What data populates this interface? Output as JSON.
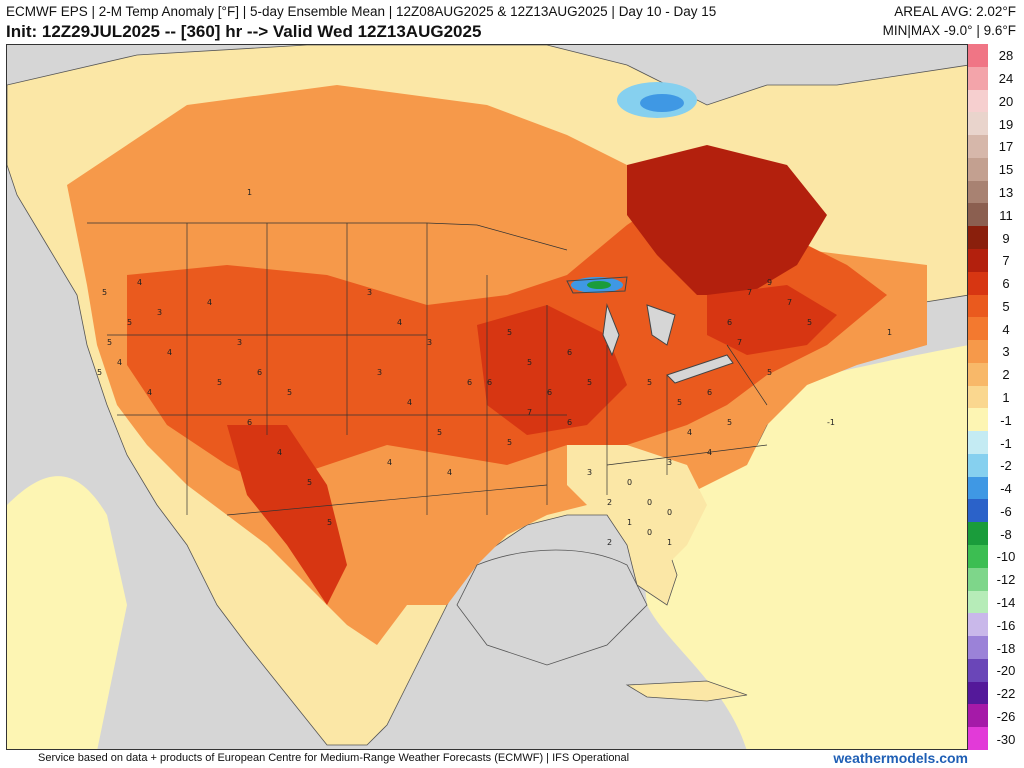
{
  "header": {
    "line1": "ECMWF EPS | 2-M Temp Anomaly [°F] | 5-day Ensemble Mean | 12Z08AUG2025 & 12Z13AUG2025 | Day 10 - Day 15",
    "line2": "Init: 12Z29JUL2025 -- [360] hr --> Valid Wed 12Z13AUG2025",
    "areal_avg": "AREAL AVG: 2.02°F",
    "minmax": "MIN|MAX -9.0° | 9.6°F"
  },
  "legend": {
    "items": [
      {
        "label": "28",
        "color": "#f07585"
      },
      {
        "label": "24",
        "color": "#f3a4aa"
      },
      {
        "label": "20",
        "color": "#f6cfcf"
      },
      {
        "label": "19",
        "color": "#e9d4cc"
      },
      {
        "label": "17",
        "color": "#d6b7aa"
      },
      {
        "label": "15",
        "color": "#c3a090"
      },
      {
        "label": "13",
        "color": "#a88272"
      },
      {
        "label": "11",
        "color": "#8b5f50"
      },
      {
        "label": "9",
        "color": "#8a1f0c"
      },
      {
        "label": "7",
        "color": "#b3200d"
      },
      {
        "label": "6",
        "color": "#d73612"
      },
      {
        "label": "5",
        "color": "#ea5a1e"
      },
      {
        "label": "4",
        "color": "#f3792f"
      },
      {
        "label": "3",
        "color": "#f6994a"
      },
      {
        "label": "2",
        "color": "#f8b869"
      },
      {
        "label": "1",
        "color": "#fad78f"
      },
      {
        "label": "-1",
        "color": "#fdf5b3"
      },
      {
        "label": "-1",
        "color": "#c4ebf3"
      },
      {
        "label": "-2",
        "color": "#86d0ef"
      },
      {
        "label": "-4",
        "color": "#3f98e4"
      },
      {
        "label": "-6",
        "color": "#2b62c9"
      },
      {
        "label": "-8",
        "color": "#1a9c3b"
      },
      {
        "label": "-10",
        "color": "#3cbe52"
      },
      {
        "label": "-12",
        "color": "#7ed68a"
      },
      {
        "label": "-14",
        "color": "#b6ecb8"
      },
      {
        "label": "-16",
        "color": "#c9b8ea"
      },
      {
        "label": "-18",
        "color": "#9b82d8"
      },
      {
        "label": "-20",
        "color": "#6a46b8"
      },
      {
        "label": "-22",
        "color": "#54199a"
      },
      {
        "label": "-26",
        "color": "#a51aa8"
      },
      {
        "label": "-30",
        "color": "#e23ad8"
      }
    ]
  },
  "map_labels": {
    "west": [
      "5",
      "5",
      "4",
      "4",
      "5",
      "3",
      "4",
      "4",
      "5"
    ],
    "rockies": [
      "4",
      "3",
      "6",
      "5",
      "5",
      "6",
      "4",
      "5",
      "5"
    ],
    "plains": [
      "3",
      "4",
      "3",
      "3",
      "4",
      "5",
      "6",
      "4",
      "4"
    ],
    "midwest": [
      "5",
      "5",
      "6",
      "7",
      "6",
      "5",
      "6",
      "6",
      "5"
    ],
    "east": [
      "5",
      "5",
      "6",
      "7",
      "5",
      "4",
      "3",
      "4",
      "5"
    ],
    "southeast": [
      "3",
      "2",
      "1",
      "0",
      "0",
      "0",
      "0",
      "1",
      "2"
    ],
    "canada": [
      "7",
      "9",
      "7",
      "6",
      "5",
      "1",
      "1",
      "-1"
    ]
  },
  "footer": {
    "credit": "Service based on data + products of European Centre for Medium-Range Weather Forecasts (ECMWF) | IFS Operational",
    "site": "weathermodels.com"
  }
}
